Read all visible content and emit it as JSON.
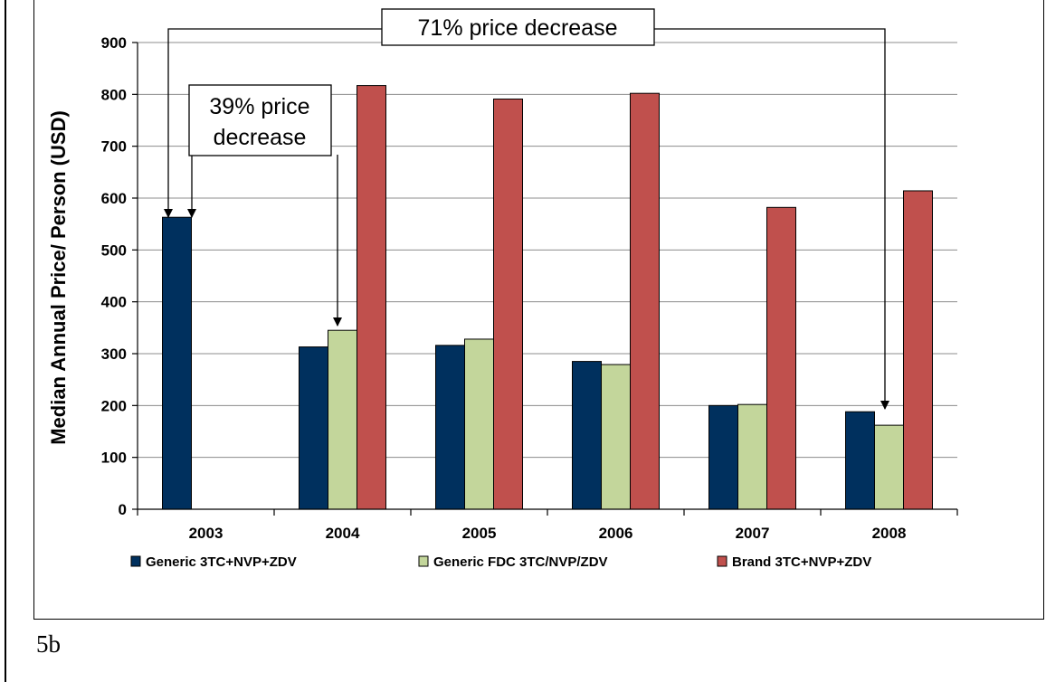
{
  "caption": "5b",
  "annotations": {
    "top": "71% price decrease",
    "inner_line1": "39% price",
    "inner_line2": "decrease"
  },
  "chart_data": {
    "type": "bar",
    "title": "",
    "xlabel": "",
    "ylabel": "Median Annual Price/ Person (USD)",
    "ylim": [
      0,
      900
    ],
    "yticks": [
      0,
      100,
      200,
      300,
      400,
      500,
      600,
      700,
      800,
      900
    ],
    "grid": true,
    "legend_position": "bottom",
    "categories": [
      "2003",
      "2004",
      "2005",
      "2006",
      "2007",
      "2008"
    ],
    "series": [
      {
        "name": "Generic 3TC+NVP+ZDV",
        "color": "#00305e",
        "values": [
          563,
          313,
          316,
          285,
          200,
          188
        ]
      },
      {
        "name": "Generic FDC 3TC/NVP/ZDV",
        "color": "#c3d69b",
        "values": [
          null,
          345,
          328,
          279,
          202,
          162
        ]
      },
      {
        "name": "Brand 3TC+NVP+ZDV",
        "color": "#c0504d",
        "values": [
          null,
          817,
          791,
          802,
          582,
          614
        ]
      }
    ]
  }
}
